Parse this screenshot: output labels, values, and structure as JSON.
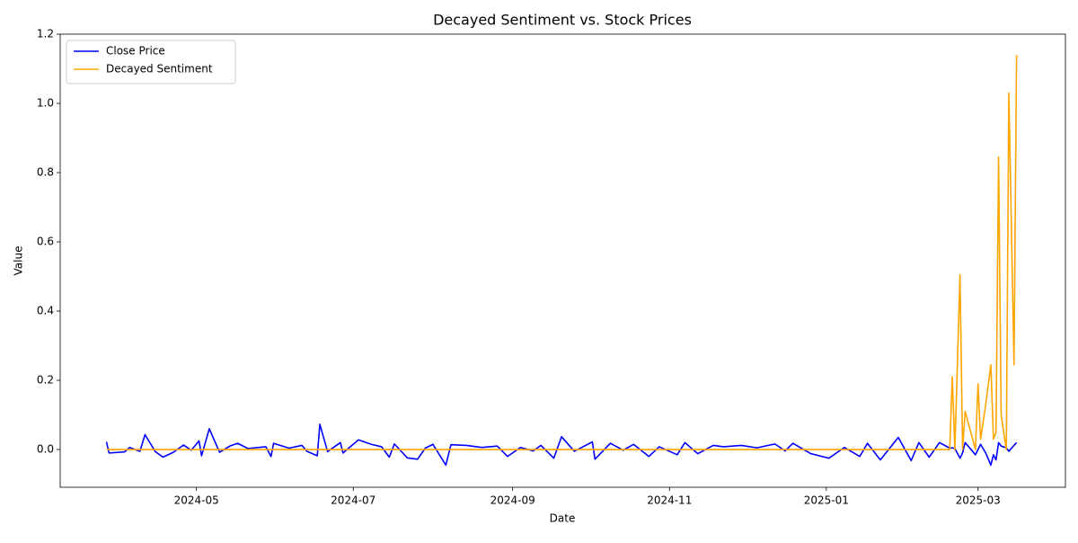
{
  "chart_data": {
    "type": "line",
    "title": "Decayed Sentiment vs. Stock Prices",
    "x_label": "Date",
    "y_label": "Value",
    "legend": "upper left",
    "grid": false,
    "x": [
      "2024-03-27",
      "2024-03-28",
      "2024-04-03",
      "2024-04-05",
      "2024-04-09",
      "2024-04-11",
      "2024-04-15",
      "2024-04-18",
      "2024-04-22",
      "2024-04-26",
      "2024-04-29",
      "2024-05-02",
      "2024-05-03",
      "2024-05-06",
      "2024-05-10",
      "2024-05-14",
      "2024-05-17",
      "2024-05-21",
      "2024-05-28",
      "2024-05-30",
      "2024-05-31",
      "2024-06-06",
      "2024-06-11",
      "2024-06-13",
      "2024-06-17",
      "2024-06-18",
      "2024-06-21",
      "2024-06-26",
      "2024-06-27",
      "2024-07-03",
      "2024-07-08",
      "2024-07-12",
      "2024-07-15",
      "2024-07-17",
      "2024-07-22",
      "2024-07-26",
      "2024-07-29",
      "2024-08-01",
      "2024-08-06",
      "2024-08-08",
      "2024-08-14",
      "2024-08-20",
      "2024-08-26",
      "2024-08-30",
      "2024-09-04",
      "2024-09-09",
      "2024-09-12",
      "2024-09-17",
      "2024-09-20",
      "2024-09-25",
      "2024-10-02",
      "2024-10-03",
      "2024-10-09",
      "2024-10-14",
      "2024-10-18",
      "2024-10-24",
      "2024-10-28",
      "2024-11-04",
      "2024-11-07",
      "2024-11-12",
      "2024-11-18",
      "2024-11-22",
      "2024-11-29",
      "2024-12-05",
      "2024-12-12",
      "2024-12-16",
      "2024-12-19",
      "2024-12-26",
      "2025-01-02",
      "2025-01-08",
      "2025-01-14",
      "2025-01-17",
      "2025-01-22",
      "2025-01-29",
      "2025-02-03",
      "2025-02-06",
      "2025-02-10",
      "2025-02-14",
      "2025-02-18",
      "2025-02-19",
      "2025-02-20",
      "2025-02-22",
      "2025-02-23",
      "2025-02-24",
      "2025-02-28",
      "2025-03-01",
      "2025-03-02",
      "2025-03-04",
      "2025-03-06",
      "2025-03-07",
      "2025-03-08",
      "2025-03-09",
      "2025-03-10",
      "2025-03-12",
      "2025-03-13",
      "2025-03-15",
      "2025-03-16"
    ],
    "series": [
      {
        "name": "Close Price",
        "color": "#0000ff",
        "values": [
          0.022,
          -0.01,
          -0.007,
          0.006,
          -0.005,
          0.043,
          -0.006,
          -0.022,
          -0.008,
          0.013,
          -0.002,
          0.025,
          -0.018,
          0.06,
          -0.008,
          0.01,
          0.018,
          0.003,
          0.008,
          -0.02,
          0.018,
          0.004,
          0.012,
          -0.005,
          -0.018,
          0.073,
          -0.006,
          0.02,
          -0.01,
          0.028,
          0.015,
          0.008,
          -0.022,
          0.016,
          -0.024,
          -0.028,
          0.004,
          0.015,
          -0.045,
          0.014,
          0.012,
          0.006,
          0.01,
          -0.02,
          0.006,
          -0.004,
          0.012,
          -0.025,
          0.037,
          -0.005,
          0.022,
          -0.028,
          0.018,
          -0.002,
          0.015,
          -0.02,
          0.008,
          -0.015,
          0.02,
          -0.012,
          0.012,
          0.008,
          0.012,
          0.005,
          0.016,
          -0.004,
          0.018,
          -0.012,
          -0.025,
          0.006,
          -0.02,
          0.018,
          -0.03,
          0.035,
          -0.032,
          0.02,
          -0.022,
          0.02,
          0.004,
          0.005,
          0.003,
          -0.025,
          -0.01,
          0.02,
          -0.015,
          0.0,
          0.015,
          -0.01,
          -0.045,
          -0.015,
          -0.03,
          0.02,
          0.01,
          0.005,
          -0.005,
          0.012,
          0.02
        ]
      },
      {
        "name": "Decayed Sentiment",
        "color": "#ffa500",
        "values": [
          0,
          0,
          0,
          0,
          0,
          0,
          0,
          0,
          0,
          0,
          0,
          0,
          0,
          0,
          0,
          0,
          0,
          0,
          0,
          0,
          0,
          0,
          0,
          0,
          0,
          0,
          0,
          0,
          0,
          0,
          0,
          0,
          0,
          0,
          0,
          0,
          0,
          0,
          0,
          0,
          0,
          0,
          0,
          0,
          0,
          0,
          0,
          0,
          0,
          0,
          0,
          0,
          0,
          0,
          0,
          0,
          0,
          0,
          0,
          0,
          0,
          0,
          0,
          0,
          0,
          0,
          0,
          0,
          0,
          0,
          0,
          0,
          0,
          0,
          0,
          0,
          0,
          0,
          0,
          0.21,
          0.0,
          0.505,
          0.0,
          0.11,
          0.0,
          0.19,
          0.03,
          0.13,
          0.245,
          0.03,
          0.05,
          0.845,
          0.1,
          0.0,
          1.03,
          0.245,
          1.14
        ]
      }
    ],
    "xlim": [
      "2024-03-09",
      "2025-04-04"
    ],
    "xticks": [
      {
        "value": "2024-05-01",
        "label": "2024-05"
      },
      {
        "value": "2024-07-01",
        "label": "2024-07"
      },
      {
        "value": "2024-09-01",
        "label": "2024-09"
      },
      {
        "value": "2024-11-01",
        "label": "2024-11"
      },
      {
        "value": "2025-01-01",
        "label": "2025-01"
      },
      {
        "value": "2025-03-01",
        "label": "2025-03"
      }
    ],
    "ylim": [
      -0.109,
      1.2
    ],
    "yticks": [
      {
        "value": 0,
        "label": "0.0"
      },
      {
        "value": 0.2,
        "label": "0.2"
      },
      {
        "value": 0.4,
        "label": "0.4"
      },
      {
        "value": 0.6,
        "label": "0.6"
      },
      {
        "value": 0.8,
        "label": "0.8"
      },
      {
        "value": 1,
        "label": "1.0"
      },
      {
        "value": 1.2,
        "label": "1.2"
      }
    ]
  }
}
